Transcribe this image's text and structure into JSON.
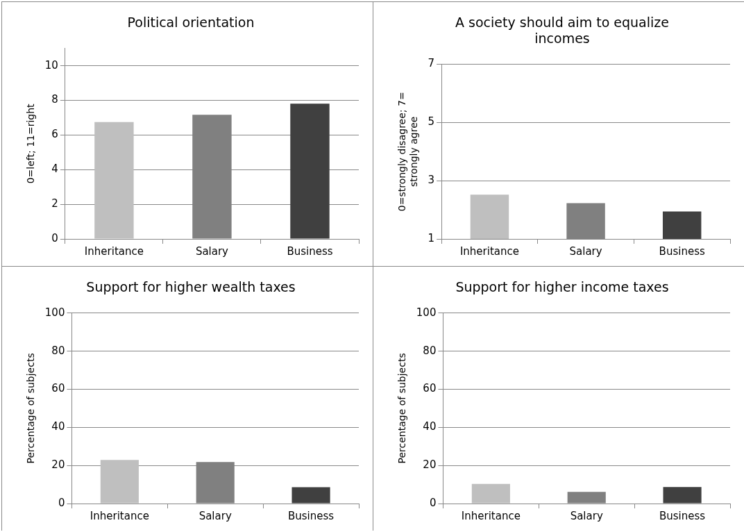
{
  "chart_data": [
    {
      "type": "bar",
      "title": "Political orientation",
      "ylabel": "0=left; 11=right",
      "categories": [
        "Inheritance",
        "Salary",
        "Business"
      ],
      "colors": [
        "#bfbfbf",
        "#808080",
        "#404040"
      ],
      "values": [
        6.75,
        7.17,
        7.81
      ],
      "ylim": [
        0,
        11
      ],
      "yticks": [
        0,
        2,
        4,
        6,
        8,
        10
      ],
      "grid": "y",
      "legend": false
    },
    {
      "type": "bar",
      "title": "A society should aim to equalize incomes",
      "ylabel": "0=strongly disagree; 7= strongly agree",
      "categories": [
        "Inheritance",
        "Salary",
        "Business"
      ],
      "colors": [
        "#bfbfbf",
        "#808080",
        "#404040"
      ],
      "values": [
        2.52,
        2.23,
        1.94
      ],
      "ylim": [
        1,
        7
      ],
      "yticks": [
        1,
        3,
        5,
        7
      ],
      "grid": "y",
      "legend": false
    },
    {
      "type": "bar",
      "title": "Support for higher wealth taxes",
      "ylabel": "Percentage of subjects",
      "categories": [
        "Inheritance",
        "Salary",
        "Business"
      ],
      "colors": [
        "#bfbfbf",
        "#808080",
        "#404040"
      ],
      "values": [
        22.9,
        21.8,
        8.6
      ],
      "ylim": [
        0,
        100
      ],
      "yticks": [
        0,
        20,
        40,
        60,
        80,
        100
      ],
      "grid": "y",
      "legend": false
    },
    {
      "type": "bar",
      "title": "Support for higher income taxes",
      "ylabel": "Percentage of subjects",
      "categories": [
        "Inheritance",
        "Salary",
        "Business"
      ],
      "colors": [
        "#bfbfbf",
        "#808080",
        "#404040"
      ],
      "values": [
        10.3,
        6.1,
        8.7
      ],
      "ylim": [
        0,
        100
      ],
      "yticks": [
        0,
        20,
        40,
        60,
        80,
        100
      ],
      "grid": "y",
      "legend": false
    }
  ]
}
